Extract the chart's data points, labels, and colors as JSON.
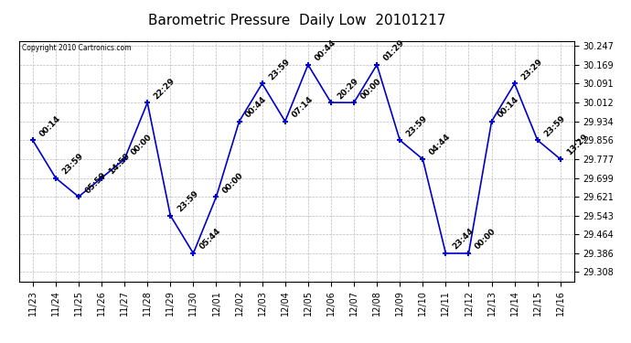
{
  "title": "Barometric Pressure  Daily Low  20101217",
  "copyright": "Copyright 2010 Cartronics.com",
  "background_color": "#ffffff",
  "line_color": "#0000cc",
  "marker_color": "#0000cc",
  "grid_color": "#bbbbbb",
  "yticks": [
    29.308,
    29.386,
    29.464,
    29.543,
    29.621,
    29.699,
    29.777,
    29.856,
    29.934,
    30.012,
    30.091,
    30.169,
    30.247
  ],
  "ylim": [
    29.27,
    30.267
  ],
  "points": [
    {
      "x": 0,
      "date": "11/23",
      "value": 29.856,
      "label": "00:14"
    },
    {
      "x": 1,
      "date": "11/24",
      "value": 29.699,
      "label": "23:59"
    },
    {
      "x": 2,
      "date": "11/25",
      "value": 29.621,
      "label": "05:59"
    },
    {
      "x": 3,
      "date": "11/26",
      "value": 29.699,
      "label": "14:59"
    },
    {
      "x": 4,
      "date": "11/27",
      "value": 29.777,
      "label": "00:00"
    },
    {
      "x": 5,
      "date": "11/28",
      "value": 30.012,
      "label": "22:29"
    },
    {
      "x": 6,
      "date": "11/29",
      "value": 29.543,
      "label": "23:59"
    },
    {
      "x": 7,
      "date": "11/30",
      "value": 29.386,
      "label": "05:44"
    },
    {
      "x": 8,
      "date": "12/01",
      "value": 29.621,
      "label": "00:00"
    },
    {
      "x": 9,
      "date": "12/02",
      "value": 29.934,
      "label": "00:44"
    },
    {
      "x": 10,
      "date": "12/03",
      "value": 30.091,
      "label": "23:59"
    },
    {
      "x": 11,
      "date": "12/04",
      "value": 29.934,
      "label": "07:14"
    },
    {
      "x": 12,
      "date": "12/05",
      "value": 30.169,
      "label": "00:44"
    },
    {
      "x": 13,
      "date": "12/06",
      "value": 30.012,
      "label": "20:29"
    },
    {
      "x": 14,
      "date": "12/07",
      "value": 30.012,
      "label": "00:00"
    },
    {
      "x": 15,
      "date": "12/08",
      "value": 30.169,
      "label": "01:29"
    },
    {
      "x": 16,
      "date": "12/09",
      "value": 29.856,
      "label": "23:59"
    },
    {
      "x": 17,
      "date": "12/10",
      "value": 29.777,
      "label": "04:44"
    },
    {
      "x": 18,
      "date": "12/11",
      "value": 29.386,
      "label": "23:44"
    },
    {
      "x": 19,
      "date": "12/12",
      "value": 29.386,
      "label": "00:00"
    },
    {
      "x": 20,
      "date": "12/13",
      "value": 29.934,
      "label": "00:14"
    },
    {
      "x": 21,
      "date": "12/14",
      "value": 30.091,
      "label": "23:29"
    },
    {
      "x": 22,
      "date": "12/15",
      "value": 29.856,
      "label": "23:59"
    },
    {
      "x": 23,
      "date": "12/16",
      "value": 29.777,
      "label": "13:29"
    }
  ],
  "title_fontsize": 11,
  "tick_fontsize": 7,
  "label_fontsize": 6.5
}
